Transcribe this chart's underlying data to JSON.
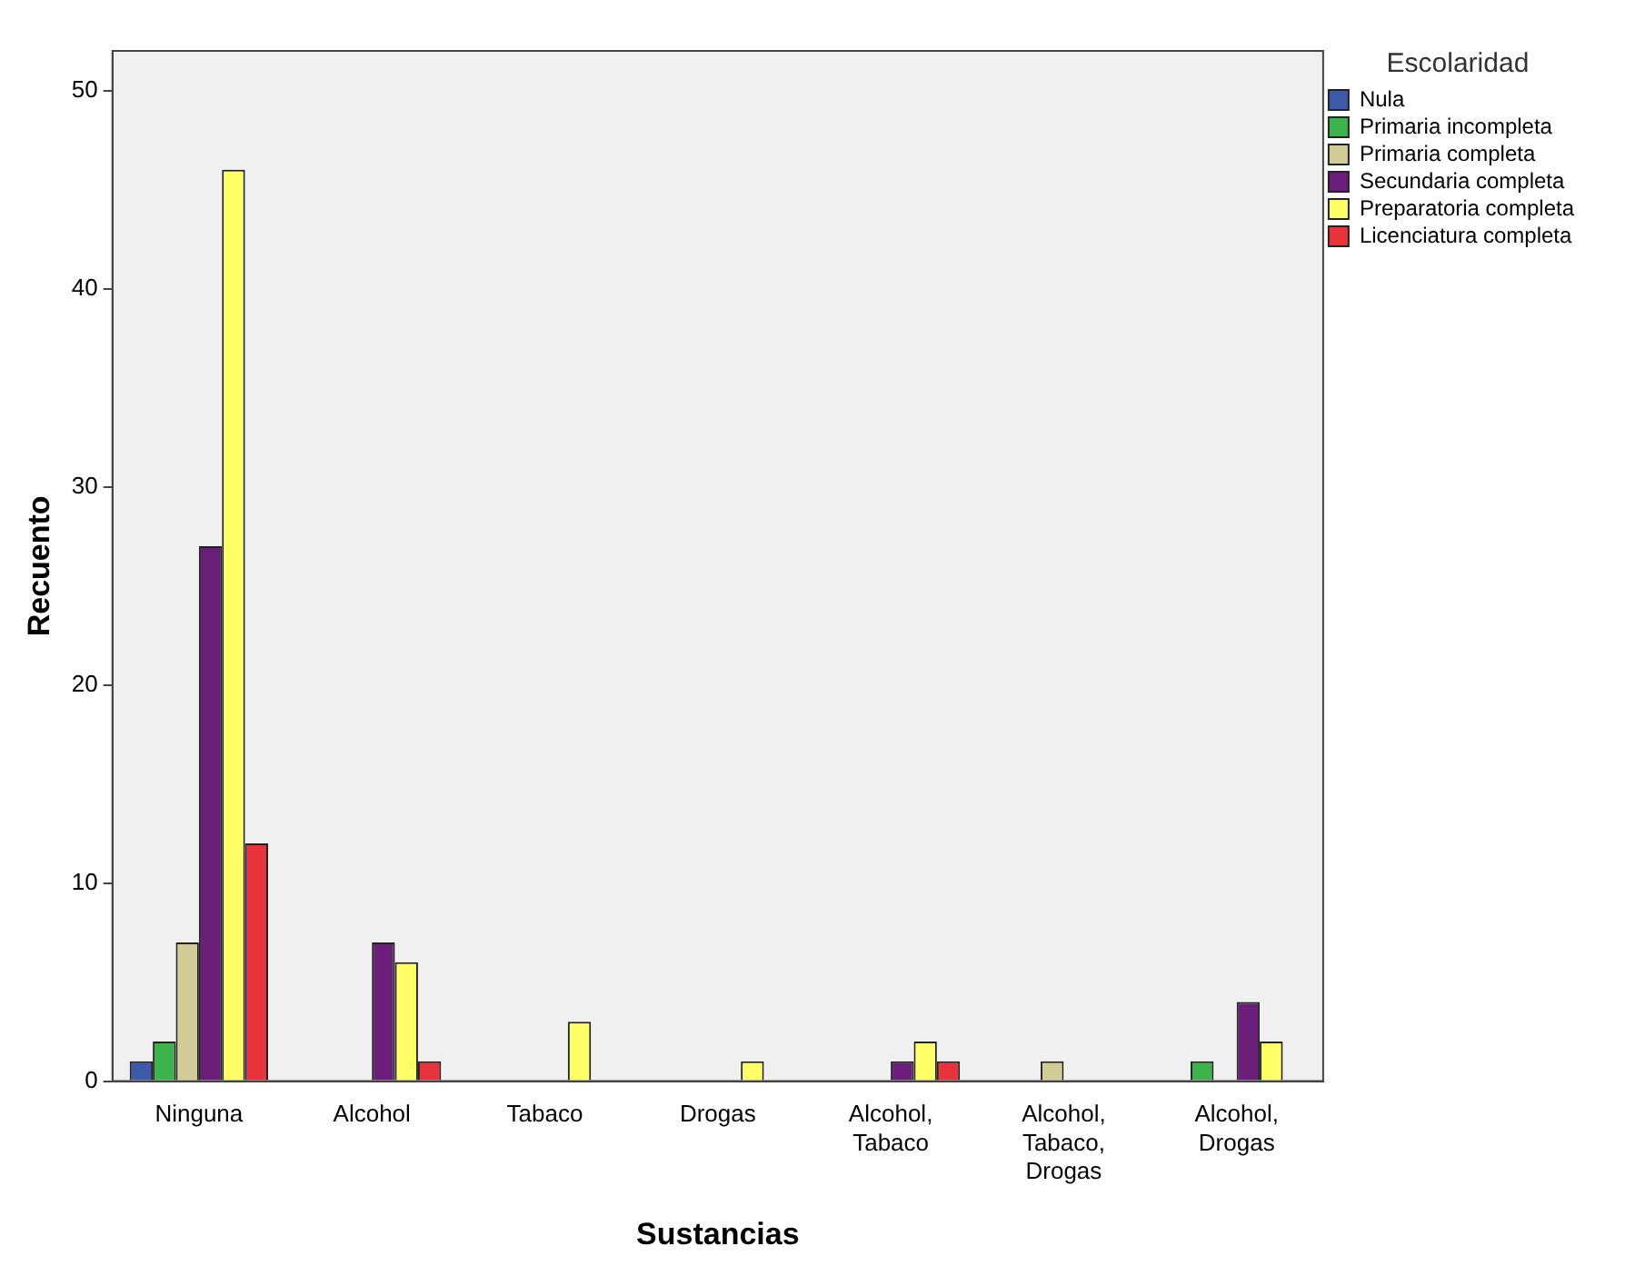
{
  "chart_data": {
    "type": "bar",
    "xlabel": "Sustancias",
    "ylabel": "Recuento",
    "legend_title": "Escolaridad",
    "legend": "top right",
    "grid": false,
    "categories": [
      "Ninguna",
      "Alcohol",
      "Tabaco",
      "Drogas",
      "Alcohol, Tabaco",
      "Alcohol, Tabaco, Drogas",
      "Alcohol, Drogas"
    ],
    "ylim": [
      0,
      52
    ],
    "yticks": [
      0,
      10,
      20,
      30,
      40,
      50
    ],
    "series": [
      {
        "name": "Nula",
        "color": "#3c5aa8",
        "values": [
          1,
          null,
          null,
          null,
          null,
          null,
          null
        ]
      },
      {
        "name": "Primaria incompleta",
        "color": "#3cb44b",
        "values": [
          2,
          null,
          null,
          null,
          null,
          null,
          1
        ]
      },
      {
        "name": "Primaria completa",
        "color": "#d2cc96",
        "values": [
          7,
          null,
          null,
          null,
          null,
          1,
          null
        ]
      },
      {
        "name": "Secundaria completa",
        "color": "#6b1f7a",
        "values": [
          27,
          7,
          null,
          null,
          1,
          null,
          4
        ]
      },
      {
        "name": "Preparatoria completa",
        "color": "#ffff66",
        "values": [
          46,
          6,
          3,
          1,
          2,
          null,
          2
        ]
      },
      {
        "name": "Licenciatura completa",
        "color": "#e8323c",
        "values": [
          12,
          1,
          null,
          null,
          1,
          null,
          null
        ]
      }
    ]
  }
}
